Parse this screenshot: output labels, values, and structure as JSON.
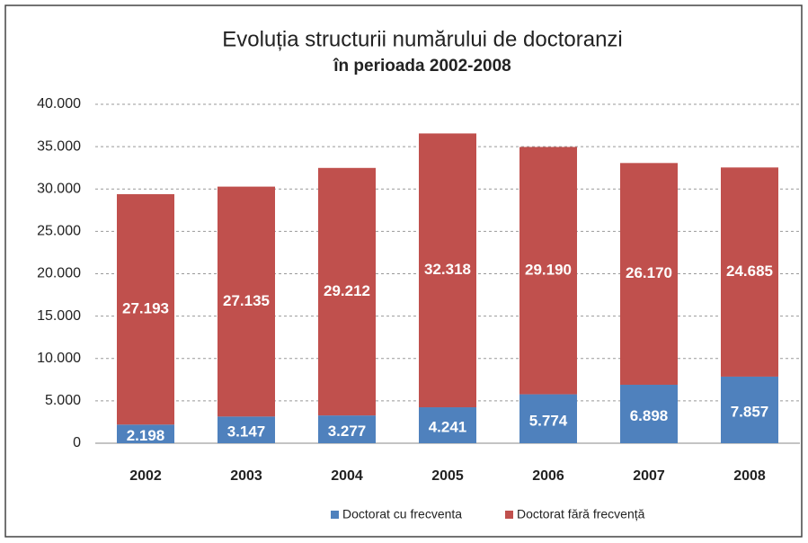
{
  "chart_data": {
    "type": "stacked_bar",
    "title": "Evoluția structurii numărului de doctoranzi",
    "subtitle": "în perioada 2002-2008",
    "categories": [
      "2002",
      "2003",
      "2004",
      "2005",
      "2006",
      "2007",
      "2008"
    ],
    "series": [
      {
        "name": "Doctorat cu frecventa",
        "color": "#4f81bd",
        "values": [
          2198,
          3147,
          3277,
          4241,
          5774,
          6898,
          7857
        ],
        "value_labels": [
          "2.198",
          "3.147",
          "3.277",
          "4.241",
          "5.774",
          "6.898",
          "7.857"
        ]
      },
      {
        "name": "Doctorat fără frecvență",
        "color": "#c0504d",
        "values": [
          27193,
          27135,
          29212,
          32318,
          29190,
          26170,
          24685
        ],
        "value_labels": [
          "27.193",
          "27.135",
          "29.212",
          "32.318",
          "29.190",
          "26.170",
          "24.685"
        ]
      }
    ],
    "ylim": [
      0,
      40000
    ],
    "yticks": [
      0,
      {
        "value": 5000,
        "label": "5.000"
      },
      {
        "value": 10000,
        "label": "10.000"
      },
      {
        "value": 15000,
        "label": "15.000"
      },
      {
        "value": 20000,
        "label": "20.000"
      },
      {
        "value": 25000,
        "label": "25.000"
      },
      {
        "value": 30000,
        "label": "30.000"
      },
      {
        "value": 35000,
        "label": "35.000"
      },
      {
        "value": 40000,
        "label": "40.000"
      }
    ],
    "grid": true,
    "legend": "bottom"
  }
}
